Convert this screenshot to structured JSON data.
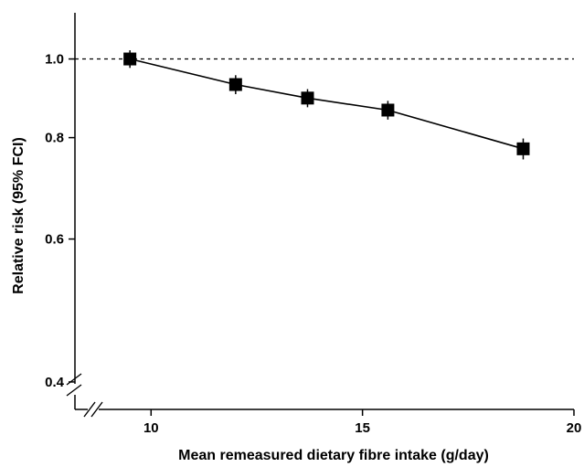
{
  "chart_data": {
    "type": "line",
    "title": "",
    "xlabel": "Mean remeasured dietary fibre intake (g/day)",
    "ylabel": "Relative risk (95% FCI)",
    "y_scale": "log",
    "xlim": [
      8.2,
      20
    ],
    "ylim": [
      0.37,
      1.14
    ],
    "xticks": [
      10,
      15,
      20
    ],
    "xtick_labels": [
      "10",
      "15",
      "20"
    ],
    "yticks": [
      0.4,
      0.6,
      0.8,
      1.0
    ],
    "ytick_labels": [
      "0.4",
      "0.6",
      "0.8",
      "1.0"
    ],
    "reference_line": 1.0,
    "axis_breaks": true,
    "grid": false,
    "legend": "none",
    "series": [
      {
        "x": [
          9.5,
          12.0,
          13.7,
          15.6,
          18.8
        ],
        "y": [
          1.0,
          0.93,
          0.895,
          0.865,
          0.775
        ],
        "ci_low": [
          0.975,
          0.905,
          0.872,
          0.842,
          0.752
        ],
        "ci_high": [
          1.025,
          0.955,
          0.918,
          0.888,
          0.798
        ],
        "marker": "square",
        "color": "#000000"
      }
    ]
  }
}
